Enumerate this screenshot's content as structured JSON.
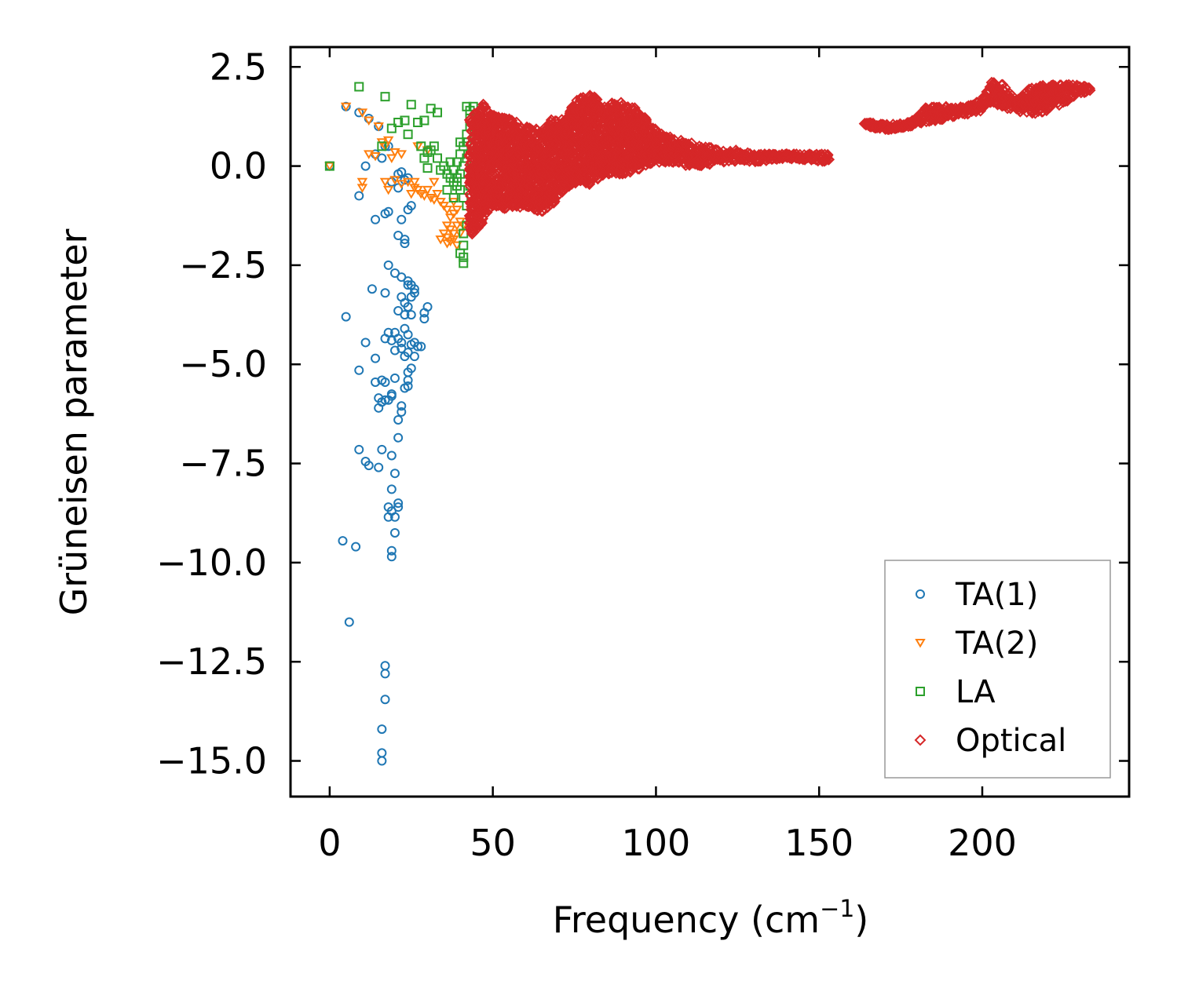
{
  "chart_data": {
    "type": "scatter",
    "xlabel": "Frequency (cm",
    "xlabel_sup": "−1",
    "xlabel_end": ")",
    "ylabel": "Grüneisen parameter",
    "xlim": [
      -12,
      245
    ],
    "ylim": [
      -15.9,
      3.0
    ],
    "xticks": [
      0,
      50,
      100,
      150,
      200
    ],
    "xtick_labels": [
      "0",
      "50",
      "100",
      "150",
      "200"
    ],
    "yticks": [
      2.5,
      0,
      -2.5,
      -5,
      -7.5,
      -10,
      -12.5,
      -15
    ],
    "ytick_labels": [
      "2.5",
      "0.0",
      "−2.5",
      "−5.0",
      "−7.5",
      "−10.0",
      "−12.5",
      "−15.0"
    ],
    "legend_position": "lower-right",
    "series": [
      {
        "name": "TA(1)",
        "marker": "circle",
        "color": "#1f77b4",
        "points": [
          [
            0,
            0
          ],
          [
            5,
            1.5
          ],
          [
            9,
            1.35
          ],
          [
            12,
            1.2
          ],
          [
            15,
            1.0
          ],
          [
            17,
            0.5
          ],
          [
            14,
            0.3
          ],
          [
            11,
            0
          ],
          [
            9,
            -0.75
          ],
          [
            18,
            0.5
          ],
          [
            16,
            0.2
          ],
          [
            19,
            -0.4
          ],
          [
            21,
            -0.2
          ],
          [
            22,
            -0.15
          ],
          [
            23,
            -0.35
          ],
          [
            24,
            -0.3
          ],
          [
            21,
            -0.55
          ],
          [
            25,
            -1.0
          ],
          [
            24,
            -1.1
          ],
          [
            18,
            -1.15
          ],
          [
            17,
            -1.2
          ],
          [
            14,
            -1.35
          ],
          [
            22,
            -1.35
          ],
          [
            21,
            -1.75
          ],
          [
            23,
            -1.85
          ],
          [
            23,
            -1.95
          ],
          [
            18,
            -2.5
          ],
          [
            20,
            -2.7
          ],
          [
            22,
            -2.8
          ],
          [
            24,
            -2.9
          ],
          [
            24,
            -3.0
          ],
          [
            25,
            -3.0
          ],
          [
            26,
            -3.1
          ],
          [
            26,
            -3.2
          ],
          [
            13,
            -3.1
          ],
          [
            17,
            -3.2
          ],
          [
            25,
            -3.3
          ],
          [
            22,
            -3.3
          ],
          [
            23,
            -3.45
          ],
          [
            24,
            -3.55
          ],
          [
            30,
            -3.55
          ],
          [
            29,
            -3.7
          ],
          [
            21,
            -3.65
          ],
          [
            23,
            -3.75
          ],
          [
            25,
            -3.75
          ],
          [
            29,
            -3.85
          ],
          [
            5,
            -3.8
          ],
          [
            23,
            -4.1
          ],
          [
            18,
            -4.2
          ],
          [
            20,
            -4.2
          ],
          [
            24,
            -4.25
          ],
          [
            17,
            -4.35
          ],
          [
            21,
            -4.35
          ],
          [
            19,
            -4.4
          ],
          [
            22,
            -4.45
          ],
          [
            26,
            -4.45
          ],
          [
            11,
            -4.45
          ],
          [
            25,
            -4.5
          ],
          [
            27,
            -4.55
          ],
          [
            28,
            -4.55
          ],
          [
            22,
            -4.6
          ],
          [
            20,
            -4.65
          ],
          [
            24,
            -4.7
          ],
          [
            23,
            -4.8
          ],
          [
            26,
            -4.8
          ],
          [
            14,
            -4.85
          ],
          [
            25,
            -5.1
          ],
          [
            24,
            -5.2
          ],
          [
            9,
            -5.15
          ],
          [
            20,
            -5.35
          ],
          [
            24,
            -5.4
          ],
          [
            16,
            -5.4
          ],
          [
            14,
            -5.45
          ],
          [
            17,
            -5.45
          ],
          [
            24,
            -5.55
          ],
          [
            23,
            -5.6
          ],
          [
            19,
            -5.75
          ],
          [
            19,
            -5.8
          ],
          [
            15,
            -5.85
          ],
          [
            17,
            -5.9
          ],
          [
            18,
            -5.9
          ],
          [
            16,
            -5.95
          ],
          [
            22,
            -6.05
          ],
          [
            15,
            -6.1
          ],
          [
            22,
            -6.2
          ],
          [
            21,
            -6.4
          ],
          [
            21,
            -6.85
          ],
          [
            9,
            -7.15
          ],
          [
            16,
            -7.15
          ],
          [
            19,
            -7.3
          ],
          [
            11,
            -7.45
          ],
          [
            12,
            -7.55
          ],
          [
            15,
            -7.6
          ],
          [
            20,
            -7.75
          ],
          [
            19,
            -8.15
          ],
          [
            21,
            -8.5
          ],
          [
            21,
            -8.6
          ],
          [
            18,
            -8.6
          ],
          [
            19,
            -8.7
          ],
          [
            18,
            -8.85
          ],
          [
            20,
            -8.85
          ],
          [
            20,
            -9.25
          ],
          [
            4,
            -9.45
          ],
          [
            8,
            -9.6
          ],
          [
            19,
            -9.7
          ],
          [
            19,
            -9.85
          ],
          [
            6,
            -11.5
          ],
          [
            17,
            -12.6
          ],
          [
            17,
            -12.8
          ],
          [
            17,
            -13.45
          ],
          [
            16,
            -14.2
          ],
          [
            16,
            -14.8
          ],
          [
            16,
            -15.0
          ]
        ]
      },
      {
        "name": "TA(2)",
        "marker": "triangle-down",
        "color": "#ff7f0e",
        "points": [
          [
            0,
            0
          ],
          [
            5,
            1.5
          ],
          [
            10,
            1.35
          ],
          [
            12,
            1.15
          ],
          [
            15,
            1.0
          ],
          [
            17,
            0.5
          ],
          [
            16,
            0.6
          ],
          [
            18,
            0.65
          ],
          [
            20,
            0.35
          ],
          [
            19,
            0.2
          ],
          [
            12,
            0.3
          ],
          [
            14,
            0.25
          ],
          [
            22,
            0.3
          ],
          [
            10,
            -0.4
          ],
          [
            10,
            -0.55
          ],
          [
            17,
            -0.4
          ],
          [
            18,
            -0.6
          ],
          [
            20,
            -0.35
          ],
          [
            22,
            -0.45
          ],
          [
            24,
            -0.4
          ],
          [
            26,
            -0.55
          ],
          [
            27,
            -0.6
          ],
          [
            28,
            -0.7
          ],
          [
            30,
            -0.6
          ],
          [
            31,
            -0.8
          ],
          [
            32,
            -0.85
          ],
          [
            29,
            -0.75
          ],
          [
            33,
            -0.7
          ],
          [
            34,
            -0.9
          ],
          [
            35,
            -1.0
          ],
          [
            36,
            -1.1
          ],
          [
            37,
            -1.3
          ],
          [
            38,
            -1.2
          ],
          [
            36,
            -1.5
          ],
          [
            35,
            -1.7
          ],
          [
            36,
            -1.8
          ],
          [
            37,
            -1.9
          ],
          [
            38,
            -1.7
          ],
          [
            39,
            -1.5
          ],
          [
            40,
            -1.4
          ],
          [
            39,
            -1.1
          ],
          [
            38,
            -0.9
          ],
          [
            37,
            -1.6
          ],
          [
            36,
            -1.95
          ],
          [
            40,
            -1.7
          ],
          [
            41,
            -1.5
          ],
          [
            34,
            -1.85
          ],
          [
            39,
            -2.0
          ],
          [
            38,
            -1.85
          ],
          [
            27,
            0.5
          ],
          [
            30,
            0.4
          ],
          [
            25,
            -0.7
          ],
          [
            26,
            -0.4
          ],
          [
            32,
            -0.4
          ]
        ]
      },
      {
        "name": "LA",
        "marker": "square",
        "color": "#2ca02c",
        "points": [
          [
            0,
            0
          ],
          [
            9,
            2.0
          ],
          [
            17,
            1.75
          ],
          [
            25,
            1.55
          ],
          [
            21,
            1.1
          ],
          [
            23,
            1.15
          ],
          [
            27,
            1.1
          ],
          [
            29,
            1.15
          ],
          [
            31,
            1.45
          ],
          [
            33,
            1.35
          ],
          [
            16,
            0.5
          ],
          [
            19,
            0.95
          ],
          [
            24,
            0.8
          ],
          [
            28,
            0.5
          ],
          [
            30,
            0.35
          ],
          [
            31,
            0.4
          ],
          [
            32,
            0.5
          ],
          [
            29,
            0.2
          ],
          [
            30,
            -0.05
          ],
          [
            33,
            0.2
          ],
          [
            35,
            0.0
          ],
          [
            34,
            -0.1
          ],
          [
            36,
            -0.2
          ],
          [
            37,
            -0.3
          ],
          [
            38,
            -0.4
          ],
          [
            39,
            -0.5
          ],
          [
            38,
            -0.1
          ],
          [
            39,
            0.1
          ],
          [
            40,
            -0.6
          ],
          [
            40,
            -0.2
          ],
          [
            40,
            0.3
          ],
          [
            41,
            -0.8
          ],
          [
            41,
            0.0
          ],
          [
            41,
            0.5
          ],
          [
            42,
            -1.0
          ],
          [
            42,
            0.2
          ],
          [
            42,
            0.8
          ],
          [
            43,
            1.0
          ],
          [
            43,
            1.2
          ],
          [
            43,
            1.4
          ],
          [
            42,
            1.5
          ],
          [
            43,
            -0.5
          ],
          [
            42,
            -1.5
          ],
          [
            41,
            -1.7
          ],
          [
            41,
            -2.0
          ],
          [
            40,
            -2.2
          ],
          [
            41,
            -2.3
          ],
          [
            41,
            -2.45
          ],
          [
            39,
            -0.3
          ],
          [
            38,
            -0.8
          ],
          [
            40,
            0.6
          ],
          [
            42,
            0.6
          ],
          [
            43,
            0.3
          ],
          [
            44,
            1.5
          ],
          [
            37,
            0.1
          ],
          [
            36,
            -0.6
          ]
        ]
      },
      {
        "name": "Optical",
        "marker": "diamond",
        "color": "#d62728",
        "points": []
      }
    ],
    "optical_band": {
      "description_points_generated_in_script": true,
      "envelope": [
        [
          43,
          -1.8,
          1.3
        ],
        [
          47,
          -1.4,
          1.6
        ],
        [
          50,
          -1.0,
          1.3
        ],
        [
          55,
          -1.1,
          1.2
        ],
        [
          60,
          -1.0,
          1.0
        ],
        [
          65,
          -1.2,
          0.9
        ],
        [
          68,
          -1.0,
          1.2
        ],
        [
          72,
          -0.6,
          1.2
        ],
        [
          76,
          -0.4,
          1.7
        ],
        [
          80,
          -0.5,
          1.8
        ],
        [
          84,
          -0.2,
          1.6
        ],
        [
          90,
          -0.2,
          1.6
        ],
        [
          95,
          -0.1,
          1.4
        ],
        [
          100,
          0.1,
          0.9
        ],
        [
          105,
          0.1,
          0.7
        ],
        [
          110,
          0.0,
          0.6
        ],
        [
          115,
          0.0,
          0.5
        ],
        [
          120,
          0.1,
          0.4
        ],
        [
          125,
          0.1,
          0.4
        ],
        [
          130,
          0.1,
          0.3
        ],
        [
          140,
          0.2,
          0.3
        ],
        [
          153,
          0.1,
          0.3
        ]
      ],
      "upper_branch": [
        [
          164,
          1.0,
          1.1
        ],
        [
          170,
          0.9,
          1.05
        ],
        [
          178,
          1.0,
          1.1
        ],
        [
          183,
          1.1,
          1.5
        ],
        [
          190,
          1.2,
          1.5
        ],
        [
          195,
          1.3,
          1.5
        ],
        [
          200,
          1.4,
          1.7
        ],
        [
          203,
          1.6,
          2.15
        ],
        [
          206,
          1.5,
          2.1
        ],
        [
          210,
          1.4,
          1.7
        ],
        [
          215,
          1.3,
          2.0
        ],
        [
          220,
          1.4,
          2.05
        ],
        [
          225,
          1.6,
          2.05
        ],
        [
          230,
          1.8,
          2.05
        ],
        [
          233,
          1.9,
          2.0
        ]
      ]
    }
  }
}
